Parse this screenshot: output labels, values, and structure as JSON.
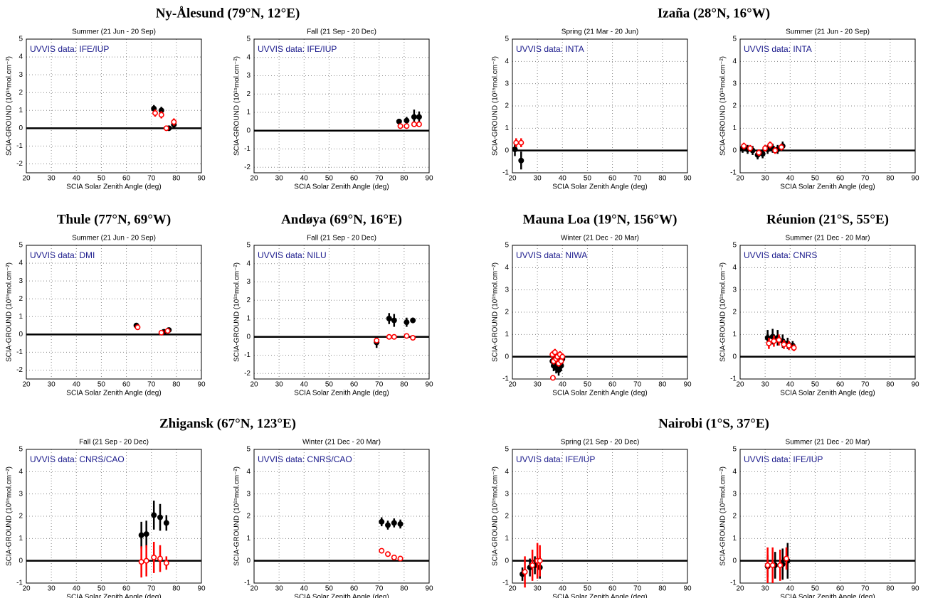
{
  "chart_data": [
    {
      "type": "scatter",
      "station": "Ny-Ålesund (79°N, 12°E)",
      "title": "Summer (21 Jun - 20 Sep)",
      "annotation": "UVVIS data: IFE/IUP",
      "xlabel": "SCIA Solar Zenith Angle (deg)",
      "ylabel": "SCIA-GROUND (10¹⁵mol.cm⁻²)",
      "xlim": [
        20,
        90
      ],
      "ylim": [
        -2.5,
        5
      ],
      "xticks": [
        20,
        30,
        40,
        50,
        60,
        70,
        80,
        90
      ],
      "yticks": [
        -2,
        -1,
        0,
        1,
        2,
        3,
        4,
        5
      ],
      "grid": true,
      "zero_line": true,
      "series": [
        {
          "color": "#000000",
          "marker": "filled",
          "x": [
            71,
            74,
            77,
            79
          ],
          "values": [
            1.1,
            1.0,
            0.0,
            0.2
          ],
          "errors": [
            0.2,
            0.2,
            0.1,
            0.2
          ]
        },
        {
          "color": "#ff0000",
          "marker": "open",
          "x": [
            71.5,
            74,
            76,
            79
          ],
          "values": [
            0.85,
            0.75,
            0.0,
            0.35
          ],
          "errors": [
            0.2,
            0.2,
            0.15,
            0.2
          ]
        }
      ]
    },
    {
      "type": "scatter",
      "title": "Fall (21 Sep - 20 Dec)",
      "annotation": "UVVIS data: IFE/IUP",
      "xlabel": "SCIA Solar Zenith Angle (deg)",
      "ylabel": "SCIA-GROUND (10¹⁵mol.cm⁻²)",
      "xlim": [
        20,
        90
      ],
      "ylim": [
        -2.3,
        5
      ],
      "xticks": [
        20,
        30,
        40,
        50,
        60,
        70,
        80,
        90
      ],
      "yticks": [
        -2,
        -1,
        0,
        1,
        2,
        3,
        4,
        5
      ],
      "grid": true,
      "zero_line": true,
      "series": [
        {
          "color": "#000000",
          "marker": "filled",
          "x": [
            78,
            81,
            84,
            86
          ],
          "values": [
            0.5,
            0.55,
            0.75,
            0.75
          ],
          "errors": [
            0.15,
            0.2,
            0.4,
            0.3
          ]
        },
        {
          "color": "#ff0000",
          "marker": "open",
          "x": [
            78.5,
            81,
            84,
            86
          ],
          "values": [
            0.25,
            0.25,
            0.35,
            0.35
          ],
          "errors": [
            0.1,
            0.1,
            0.15,
            0.15
          ]
        }
      ]
    },
    {
      "type": "scatter",
      "station": "Izaña (28°N, 16°W)",
      "title": "Spring (21 Mar - 20 Jun)",
      "annotation": "UVVIS data: INTA",
      "xlabel": "SCIA Solar Zenith Angle (deg)",
      "ylabel": "SCIA-GROUND (10¹⁵mol.cm⁻²)",
      "xlim": [
        20,
        90
      ],
      "ylim": [
        -1,
        5
      ],
      "xticks": [
        20,
        30,
        40,
        50,
        60,
        70,
        80,
        90
      ],
      "yticks": [
        -1,
        0,
        1,
        2,
        3,
        4,
        5
      ],
      "grid": true,
      "zero_line": true,
      "series": [
        {
          "color": "#000000",
          "marker": "filled",
          "x": [
            21,
            23.5
          ],
          "values": [
            0.05,
            -0.45
          ],
          "errors": [
            0.3,
            0.4
          ]
        },
        {
          "color": "#ff0000",
          "marker": "open",
          "x": [
            21.5,
            23.5
          ],
          "values": [
            0.35,
            0.35
          ],
          "errors": [
            0.2,
            0.2
          ]
        }
      ]
    },
    {
      "type": "scatter",
      "title": "Summer (21 Jun - 20 Sep)",
      "annotation": "UVVIS data: INTA",
      "xlabel": "SCIA Solar Zenith Angle (deg)",
      "ylabel": "SCIA-GROUND (10¹⁵mol.cm⁻²)",
      "xlim": [
        20,
        90
      ],
      "ylim": [
        -1,
        5
      ],
      "xticks": [
        20,
        30,
        40,
        50,
        60,
        70,
        80,
        90
      ],
      "yticks": [
        -1,
        0,
        1,
        2,
        3,
        4,
        5
      ],
      "grid": true,
      "zero_line": true,
      "series": [
        {
          "color": "#000000",
          "marker": "filled",
          "x": [
            21,
            23,
            25,
            27,
            29,
            31,
            33,
            35,
            37
          ],
          "values": [
            0.1,
            0.05,
            0.0,
            -0.2,
            -0.15,
            0.05,
            0.1,
            0.05,
            0.2
          ],
          "errors": [
            0.2,
            0.2,
            0.2,
            0.2,
            0.2,
            0.2,
            0.2,
            0.2,
            0.2
          ]
        },
        {
          "color": "#ff0000",
          "marker": "open",
          "x": [
            21.5,
            24,
            27.5,
            30,
            32,
            34,
            36.5
          ],
          "values": [
            0.2,
            0.1,
            -0.1,
            0.1,
            0.25,
            0.0,
            0.15
          ],
          "errors": [
            0.15,
            0.15,
            0.15,
            0.15,
            0.15,
            0.15,
            0.15
          ]
        }
      ]
    },
    {
      "type": "scatter",
      "station": "Thule (77°N, 69°W)",
      "title": "Summer (21 Jun - 20 Sep)",
      "annotation": "UVVIS data: DMI",
      "xlabel": "SCIA Solar Zenith Angle (deg)",
      "ylabel": "SCIA-GROUND (10¹⁵mol.cm⁻²)",
      "xlim": [
        20,
        90
      ],
      "ylim": [
        -2.5,
        5
      ],
      "xticks": [
        20,
        30,
        40,
        50,
        60,
        70,
        80,
        90
      ],
      "yticks": [
        -2,
        -1,
        0,
        1,
        2,
        3,
        4,
        5
      ],
      "grid": true,
      "zero_line": true,
      "series": [
        {
          "color": "#000000",
          "marker": "filled",
          "x": [
            64,
            75,
            77
          ],
          "values": [
            0.5,
            0.15,
            0.25
          ],
          "errors": [
            0.1,
            0.1,
            0.1
          ]
        },
        {
          "color": "#ff0000",
          "marker": "open",
          "x": [
            64.5,
            74,
            76.5
          ],
          "values": [
            0.4,
            0.1,
            0.2
          ],
          "errors": [
            0.1,
            0.1,
            0.1
          ]
        }
      ]
    },
    {
      "type": "scatter",
      "station": "Andøya (69°N, 16°E)",
      "title": "Fall (21 Sep - 20 Dec)",
      "annotation": "UVVIS data: NILU",
      "xlabel": "SCIA Solar Zenith Angle (deg)",
      "ylabel": "SCIA-GROUND (10¹⁵mol.cm⁻²)",
      "xlim": [
        20,
        90
      ],
      "ylim": [
        -2.3,
        5
      ],
      "xticks": [
        20,
        30,
        40,
        50,
        60,
        70,
        80,
        90
      ],
      "yticks": [
        -2,
        -1,
        0,
        1,
        2,
        3,
        4,
        5
      ],
      "grid": true,
      "zero_line": true,
      "series": [
        {
          "color": "#000000",
          "marker": "filled",
          "x": [
            69,
            74,
            76,
            81,
            83.5
          ],
          "values": [
            -0.3,
            1.0,
            0.9,
            0.8,
            0.9
          ],
          "errors": [
            0.3,
            0.3,
            0.35,
            0.25,
            0.15
          ]
        },
        {
          "color": "#ff0000",
          "marker": "open",
          "x": [
            69,
            74,
            76,
            81,
            83.5
          ],
          "values": [
            -0.2,
            0.0,
            0.0,
            0.05,
            -0.05
          ],
          "errors": [
            0.1,
            0.1,
            0.1,
            0.1,
            0.1
          ]
        }
      ]
    },
    {
      "type": "scatter",
      "station": "Mauna Loa (19°N, 156°W)",
      "title": "Winter (21 Dec - 20 Mar)",
      "annotation": "UVVIS data: NIWA",
      "xlabel": "SCIA Solar Zenith Angle (deg)",
      "ylabel": "SCIA-GROUND (10¹⁵mol.cm⁻²)",
      "xlim": [
        20,
        90
      ],
      "ylim": [
        -1,
        5
      ],
      "xticks": [
        20,
        30,
        40,
        50,
        60,
        70,
        80,
        90
      ],
      "yticks": [
        -1,
        0,
        1,
        2,
        3,
        4,
        5
      ],
      "grid": true,
      "zero_line": true,
      "series": [
        {
          "color": "#000000",
          "marker": "filled",
          "x": [
            36,
            36.5,
            37,
            37.5,
            38,
            38.5,
            39,
            39.5,
            40
          ],
          "values": [
            -0.2,
            -0.4,
            -0.1,
            -0.5,
            -0.3,
            -0.6,
            -0.2,
            -0.4,
            -0.1
          ],
          "errors": [
            0.25,
            0.25,
            0.25,
            0.25,
            0.25,
            0.25,
            0.25,
            0.25,
            0.25
          ]
        },
        {
          "color": "#ff0000",
          "marker": "open",
          "x": [
            36,
            36.5,
            37,
            37.5,
            38,
            38.5,
            39,
            39.5,
            40,
            36.2
          ],
          "values": [
            0.1,
            -0.2,
            0.2,
            -0.1,
            0.0,
            -0.3,
            0.1,
            -0.2,
            0.0,
            -0.95
          ],
          "errors": [
            0.15,
            0.15,
            0.15,
            0.15,
            0.15,
            0.15,
            0.15,
            0.15,
            0.15,
            0.05
          ]
        }
      ]
    },
    {
      "type": "scatter",
      "station": "Réunion (21°S, 55°E)",
      "title": "Summer (21 Dec - 20 Mar)",
      "annotation": "UVVIS data: CNRS",
      "xlabel": "SCIA Solar Zenith Angle (deg)",
      "ylabel": "SCIA-GROUND (10¹⁵mol.cm⁻²)",
      "xlim": [
        20,
        90
      ],
      "ylim": [
        -1,
        5
      ],
      "xticks": [
        20,
        30,
        40,
        50,
        60,
        70,
        80,
        90
      ],
      "yticks": [
        -1,
        0,
        1,
        2,
        3,
        4,
        5
      ],
      "grid": true,
      "zero_line": true,
      "series": [
        {
          "color": "#000000",
          "marker": "filled",
          "x": [
            31,
            33,
            35,
            37,
            39,
            41
          ],
          "values": [
            0.85,
            0.9,
            0.85,
            0.7,
            0.6,
            0.5
          ],
          "errors": [
            0.35,
            0.35,
            0.35,
            0.3,
            0.25,
            0.2
          ]
        },
        {
          "color": "#ff0000",
          "marker": "open",
          "x": [
            31.5,
            33.5,
            35.5,
            37.5,
            39.5,
            41.5
          ],
          "values": [
            0.6,
            0.7,
            0.75,
            0.55,
            0.5,
            0.4
          ],
          "errors": [
            0.25,
            0.25,
            0.25,
            0.2,
            0.2,
            0.15
          ]
        }
      ]
    },
    {
      "type": "scatter",
      "station": "Zhigansk (67°N, 123°E)",
      "title": "Fall (21 Sep - 20 Dec)",
      "annotation": "UVVIS data: CNRS/CAO",
      "xlabel": "SCIA Solar Zenith Angle (deg)",
      "ylabel": "SCIA-GROUND (10¹⁵mol.cm⁻²)",
      "xlim": [
        20,
        90
      ],
      "ylim": [
        -1,
        5
      ],
      "xticks": [
        20,
        30,
        40,
        50,
        60,
        70,
        80,
        90
      ],
      "yticks": [
        -1,
        0,
        1,
        2,
        3,
        4,
        5
      ],
      "grid": true,
      "zero_line": true,
      "series": [
        {
          "color": "#000000",
          "marker": "filled",
          "x": [
            66,
            68,
            71,
            73.5,
            76
          ],
          "values": [
            1.15,
            1.2,
            2.05,
            1.95,
            1.7
          ],
          "errors": [
            0.6,
            0.6,
            0.65,
            0.6,
            0.35
          ]
        },
        {
          "color": "#ff0000",
          "marker": "open",
          "x": [
            66,
            68,
            71,
            73.5,
            76
          ],
          "values": [
            -0.05,
            0.0,
            0.15,
            0.1,
            -0.1
          ],
          "errors": [
            0.7,
            0.7,
            0.7,
            0.6,
            0.3
          ]
        }
      ]
    },
    {
      "type": "scatter",
      "title": "Winter (21 Dec - 20 Mar)",
      "annotation": "UVVIS data: CNRS/CAO",
      "xlabel": "SCIA Solar Zenith Angle (deg)",
      "ylabel": "SCIA-GROUND (10¹⁵mol.cm⁻²)",
      "xlim": [
        20,
        90
      ],
      "ylim": [
        -1,
        5
      ],
      "xticks": [
        20,
        30,
        40,
        50,
        60,
        70,
        80,
        90
      ],
      "yticks": [
        -1,
        0,
        1,
        2,
        3,
        4,
        5
      ],
      "grid": true,
      "zero_line": true,
      "series": [
        {
          "color": "#000000",
          "marker": "filled",
          "x": [
            71,
            73.5,
            76,
            78.5
          ],
          "values": [
            1.75,
            1.6,
            1.7,
            1.65
          ],
          "errors": [
            0.2,
            0.2,
            0.2,
            0.2
          ]
        },
        {
          "color": "#ff0000",
          "marker": "open",
          "x": [
            71,
            73.5,
            76,
            78.5
          ],
          "values": [
            0.45,
            0.3,
            0.15,
            0.1
          ],
          "errors": [
            0.1,
            0.1,
            0.1,
            0.1
          ]
        }
      ]
    },
    {
      "type": "scatter",
      "station": "Nairobi (1°S, 37°E)",
      "title": "Spring (21 Sep - 20 Dec)",
      "annotation": "UVVIS data: IFE/IUP",
      "xlabel": "SCIA Solar Zenith Angle (deg)",
      "ylabel": "SCIA-GROUND (10¹⁵mol.cm⁻²)",
      "xlim": [
        20,
        90
      ],
      "ylim": [
        -1,
        5
      ],
      "xticks": [
        20,
        30,
        40,
        50,
        60,
        70,
        80,
        90
      ],
      "yticks": [
        -1,
        0,
        1,
        2,
        3,
        4,
        5
      ],
      "grid": true,
      "zero_line": true,
      "series": [
        {
          "color": "#000000",
          "marker": "filled",
          "x": [
            24,
            27,
            29,
            31
          ],
          "values": [
            -0.6,
            -0.3,
            -0.2,
            -0.3
          ],
          "errors": [
            0.3,
            0.4,
            0.4,
            0.5
          ]
        },
        {
          "color": "#ff0000",
          "marker": "open",
          "x": [
            25,
            28,
            30,
            31
          ],
          "values": [
            -0.5,
            -0.2,
            0.0,
            0.0
          ],
          "errors": [
            0.7,
            0.7,
            0.8,
            0.7
          ]
        }
      ]
    },
    {
      "type": "scatter",
      "title": "Summer (21 Dec - 20 Mar)",
      "annotation": "UVVIS data: IFE/IUP",
      "xlabel": "SCIA Solar Zenith Angle (deg)",
      "ylabel": "SCIA-GROUND (10¹⁵mol.cm⁻²)",
      "xlim": [
        20,
        90
      ],
      "ylim": [
        -1,
        5
      ],
      "xticks": [
        20,
        30,
        40,
        50,
        60,
        70,
        80,
        90
      ],
      "yticks": [
        -1,
        0,
        1,
        2,
        3,
        4,
        5
      ],
      "grid": true,
      "zero_line": true,
      "series": [
        {
          "color": "#000000",
          "marker": "filled",
          "x": [
            31,
            34,
            37,
            39
          ],
          "values": [
            -0.25,
            -0.2,
            -0.15,
            0.0
          ],
          "errors": [
            0.5,
            0.6,
            0.7,
            0.8
          ]
        },
        {
          "color": "#ff0000",
          "marker": "open",
          "x": [
            31,
            33,
            36,
            38.5
          ],
          "values": [
            -0.2,
            -0.2,
            -0.2,
            0.1
          ],
          "errors": [
            0.8,
            0.8,
            0.7,
            0.5
          ]
        }
      ]
    }
  ]
}
